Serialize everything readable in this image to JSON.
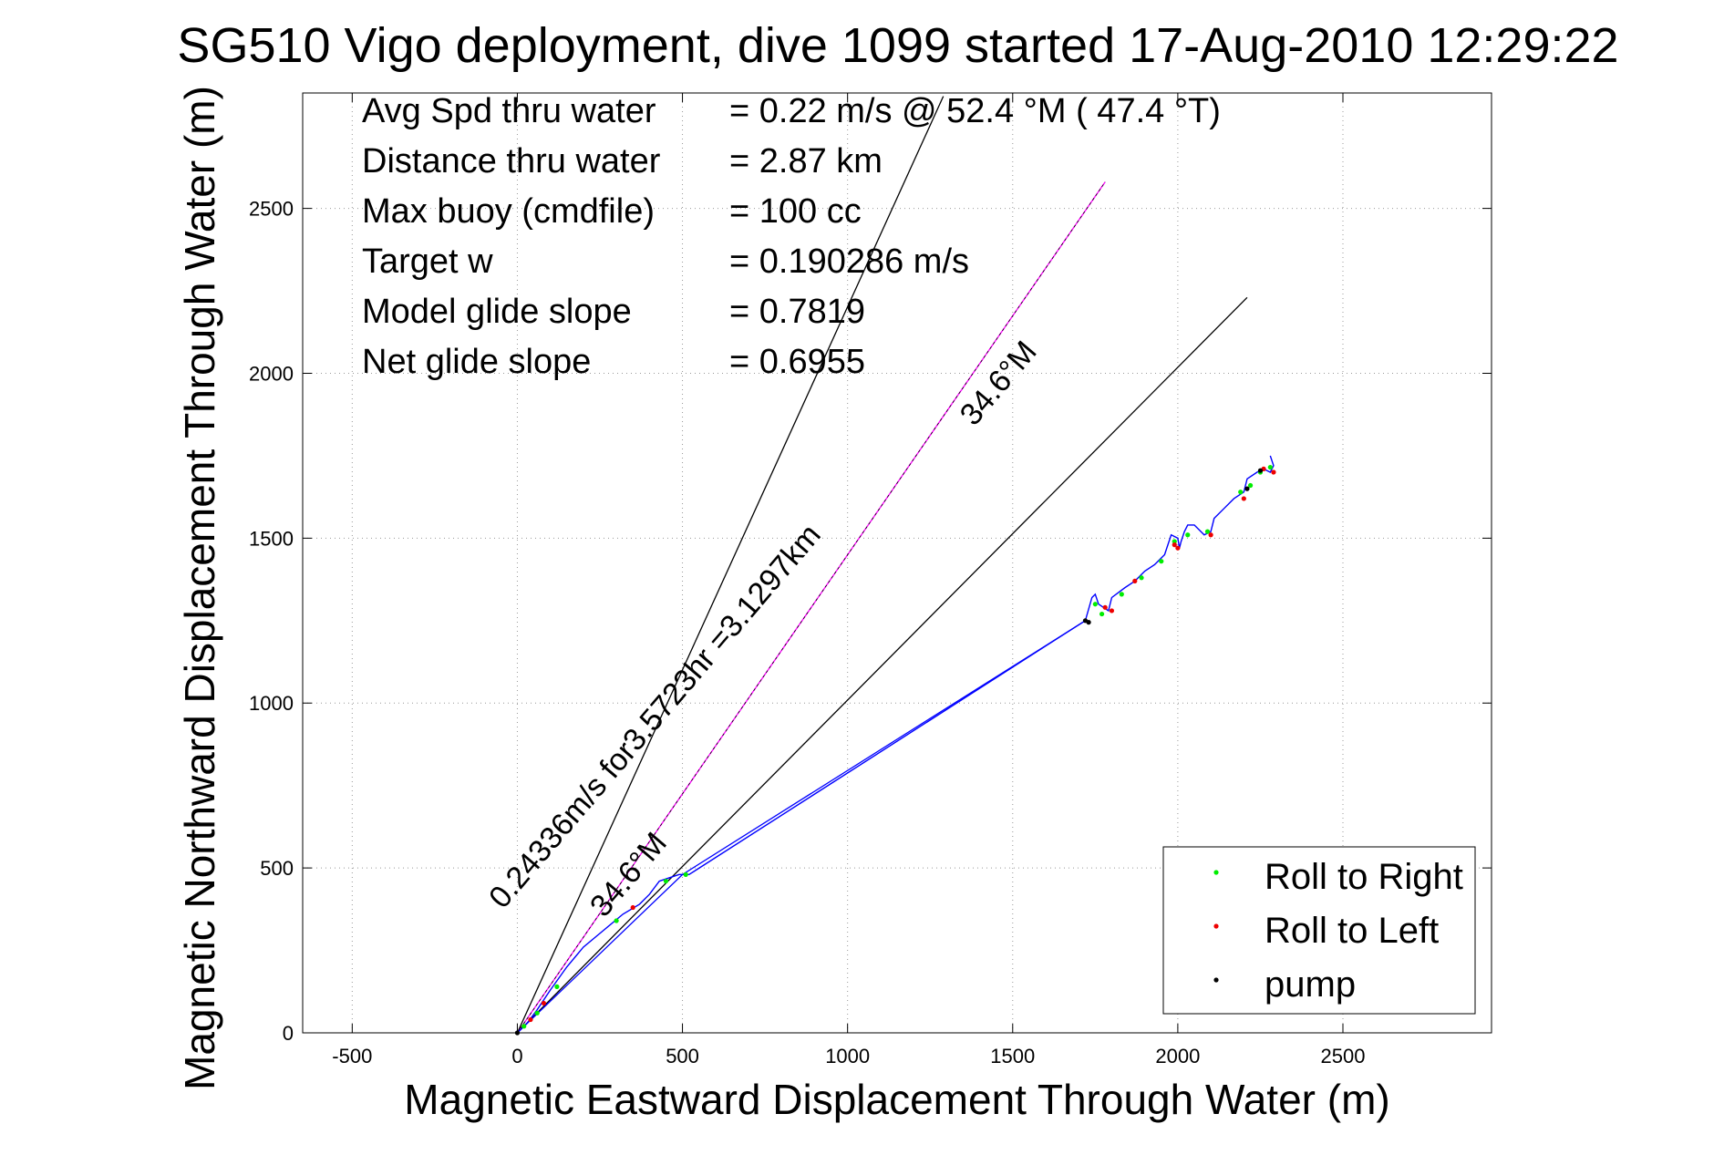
{
  "chart_data": {
    "type": "line",
    "title": "SG510 Vigo deployment, dive 1099 started 17-Aug-2010 12:29:22",
    "xlabel": "Magnetic Eastward Displacement Through Water (m)",
    "ylabel": "Magnetic Northward Displacement Through Water (m)",
    "xlim": [
      -650,
      2950
    ],
    "ylim": [
      0,
      2850
    ],
    "xticks": [
      -500,
      0,
      500,
      1000,
      1500,
      2000,
      2500
    ],
    "yticks": [
      0,
      500,
      1000,
      1500,
      2000,
      2500
    ],
    "grid": true,
    "legend_position": "bottom-right",
    "colors": {
      "track": "#0000ff",
      "glide_course": "#ff00ff",
      "reference_lines": "#000000",
      "roll_right": "#00ee00",
      "roll_left": "#ee0000",
      "pump": "#000000"
    },
    "info_lines": [
      {
        "label": "Avg Spd thru water",
        "value": "=  0.22 m/s @  52.4 °M ( 47.4 °T)"
      },
      {
        "label": "Distance thru water",
        "value": "=  2.87 km"
      },
      {
        "label": "Max buoy (cmdfile)",
        "value": "= 100 cc"
      },
      {
        "label": "Target w",
        "value": "= 0.190286 m/s"
      },
      {
        "label": "Model glide slope",
        "value": "= 0.7819"
      },
      {
        "label": "Net glide slope",
        "value": "= 0.6955"
      }
    ],
    "annotations": [
      {
        "text": "0.24336m/s for3.5723hr =3.1297km",
        "x": 440,
        "y": 940,
        "angle_deg": 49.6
      },
      {
        "text": "34.6°M",
        "x": 1480,
        "y": 1950,
        "angle_deg": 49.6
      },
      {
        "text": "34.6°M",
        "x": 360,
        "y": 460,
        "angle_deg": 49.6
      }
    ],
    "series": [
      {
        "name": "track",
        "x": [
          0,
          30,
          60,
          100,
          150,
          200,
          260,
          320,
          370,
          400,
          430,
          460,
          490,
          520,
          1720,
          1740,
          1750,
          1760,
          1790,
          1800,
          1840,
          1870,
          1900,
          1930,
          1960,
          1980,
          2000,
          2005,
          2010,
          2020,
          2030,
          2050,
          2080,
          2100,
          2110,
          2140,
          2170,
          2200,
          2210,
          2240,
          2260,
          2280,
          2290,
          2280
        ],
        "y": [
          0,
          30,
          70,
          130,
          200,
          260,
          310,
          360,
          390,
          420,
          460,
          470,
          480,
          480,
          1250,
          1320,
          1330,
          1300,
          1280,
          1320,
          1350,
          1370,
          1400,
          1420,
          1450,
          1510,
          1500,
          1470,
          1490,
          1520,
          1540,
          1540,
          1510,
          1520,
          1560,
          1590,
          1620,
          1640,
          1680,
          1700,
          1710,
          1700,
          1720,
          1750
        ]
      },
      {
        "name": "Roll to Right",
        "x": [
          20,
          60,
          120,
          300,
          450,
          510,
          1750,
          1770,
          1830,
          1890,
          1950,
          1990,
          2030,
          2090,
          2190,
          2220,
          2250,
          2280
        ],
        "y": [
          20,
          60,
          140,
          340,
          460,
          480,
          1300,
          1270,
          1330,
          1380,
          1430,
          1490,
          1510,
          1520,
          1640,
          1660,
          1700,
          1715
        ]
      },
      {
        "name": "Roll to Left",
        "x": [
          40,
          80,
          350,
          1780,
          1800,
          1870,
          1990,
          2000,
          2100,
          2200,
          2260,
          2290
        ],
        "y": [
          40,
          90,
          380,
          1290,
          1280,
          1370,
          1480,
          1470,
          1510,
          1620,
          1710,
          1700
        ]
      },
      {
        "name": "pump",
        "x": [
          0,
          1720,
          1730,
          2210,
          2250
        ],
        "y": [
          0,
          1250,
          1245,
          1650,
          1705
        ]
      }
    ],
    "reference_lines": [
      {
        "name": "glide course",
        "x": [
          0,
          1780
        ],
        "y": [
          0,
          2580
        ]
      },
      {
        "name": "heading bound upper",
        "x": [
          0,
          1290
        ],
        "y": [
          0,
          2840
        ]
      },
      {
        "name": "heading bound lower",
        "x": [
          0,
          2210
        ],
        "y": [
          0,
          2230
        ]
      },
      {
        "name": "net track",
        "x": [
          0,
          500,
          1720
        ],
        "y": [
          0,
          480,
          1250
        ]
      }
    ],
    "legend": [
      "Roll to Right",
      "Roll to Left",
      "pump"
    ]
  }
}
